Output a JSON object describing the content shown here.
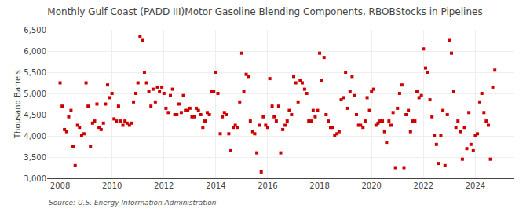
{
  "chart_data": {
    "type": "scatter",
    "title": "Monthly Gulf Coast (PADD III)Motor Gasoline Blending Components, RBOBStocks in Pipelines",
    "ylabel": "Thousand Barrels",
    "source": "Source: U.S. Energy Information Administration",
    "color": "#cc0000",
    "marker": "square",
    "grid": true,
    "xlim": [
      2007.5,
      2025.5
    ],
    "xticks": [
      2008,
      2010,
      2012,
      2014,
      2016,
      2018,
      2020,
      2022,
      2024
    ],
    "ylim": [
      3000,
      6500
    ],
    "yticks": [
      {
        "value": 3000,
        "label": "3,000"
      },
      {
        "value": 3500,
        "label": "3,500"
      },
      {
        "value": 4000,
        "label": "4,000"
      },
      {
        "value": 4500,
        "label": "4,500"
      },
      {
        "value": 5000,
        "label": "5,000"
      },
      {
        "value": 5500,
        "label": "5,500"
      },
      {
        "value": 6000,
        "label": "6,000"
      },
      {
        "value": 6500,
        "label": "6,500"
      }
    ],
    "x": [
      2008.0,
      2008.08,
      2008.17,
      2008.25,
      2008.33,
      2008.42,
      2008.5,
      2008.58,
      2008.67,
      2008.75,
      2008.83,
      2008.92,
      2009.0,
      2009.08,
      2009.17,
      2009.25,
      2009.33,
      2009.42,
      2009.5,
      2009.58,
      2009.67,
      2009.75,
      2009.83,
      2009.92,
      2010.0,
      2010.08,
      2010.17,
      2010.25,
      2010.33,
      2010.42,
      2010.5,
      2010.58,
      2010.67,
      2010.75,
      2010.83,
      2010.92,
      2011.0,
      2011.08,
      2011.17,
      2011.25,
      2011.33,
      2011.42,
      2011.5,
      2011.58,
      2011.67,
      2011.75,
      2011.83,
      2011.92,
      2012.0,
      2012.08,
      2012.17,
      2012.25,
      2012.33,
      2012.42,
      2012.5,
      2012.58,
      2012.67,
      2012.75,
      2012.83,
      2012.92,
      2013.0,
      2013.08,
      2013.17,
      2013.25,
      2013.33,
      2013.42,
      2013.5,
      2013.58,
      2013.67,
      2013.75,
      2013.83,
      2013.92,
      2014.0,
      2014.08,
      2014.17,
      2014.25,
      2014.33,
      2014.42,
      2014.5,
      2014.58,
      2014.67,
      2014.75,
      2014.83,
      2014.92,
      2015.0,
      2015.08,
      2015.17,
      2015.25,
      2015.33,
      2015.42,
      2015.5,
      2015.58,
      2015.67,
      2015.75,
      2015.83,
      2015.92,
      2016.0,
      2016.08,
      2016.17,
      2016.25,
      2016.33,
      2016.42,
      2016.5,
      2016.58,
      2016.67,
      2016.75,
      2016.83,
      2016.92,
      2017.0,
      2017.08,
      2017.17,
      2017.25,
      2017.33,
      2017.42,
      2017.5,
      2017.58,
      2017.67,
      2017.75,
      2017.83,
      2017.92,
      2018.0,
      2018.08,
      2018.17,
      2018.25,
      2018.33,
      2018.42,
      2018.5,
      2018.58,
      2018.67,
      2018.75,
      2018.83,
      2018.92,
      2019.0,
      2019.08,
      2019.17,
      2019.25,
      2019.33,
      2019.42,
      2019.5,
      2019.58,
      2019.67,
      2019.75,
      2019.83,
      2019.92,
      2020.0,
      2020.08,
      2020.17,
      2020.25,
      2020.33,
      2020.42,
      2020.5,
      2020.58,
      2020.67,
      2020.75,
      2020.83,
      2020.92,
      2021.0,
      2021.08,
      2021.17,
      2021.25,
      2021.33,
      2021.42,
      2021.5,
      2021.58,
      2021.67,
      2021.75,
      2021.83,
      2021.92,
      2022.0,
      2022.08,
      2022.17,
      2022.25,
      2022.33,
      2022.42,
      2022.5,
      2022.58,
      2022.67,
      2022.75,
      2022.83,
      2022.92,
      2023.0,
      2023.08,
      2023.17,
      2023.25,
      2023.33,
      2023.42,
      2023.5,
      2023.58,
      2023.67,
      2023.75,
      2023.83,
      2023.92,
      2024.0,
      2024.08,
      2024.17,
      2024.25,
      2024.33,
      2024.42,
      2024.5,
      2024.58,
      2024.67,
      2024.75
    ],
    "values": [
      5250,
      4700,
      4150,
      4100,
      4450,
      4600,
      3750,
      3300,
      4250,
      4200,
      4000,
      4050,
      5250,
      4700,
      3750,
      4300,
      4350,
      4750,
      4200,
      4150,
      4300,
      4750,
      5200,
      4900,
      5000,
      4400,
      4350,
      4700,
      4350,
      4250,
      4350,
      4300,
      4250,
      4300,
      4800,
      5000,
      5250,
      6350,
      6250,
      5500,
      5250,
      5050,
      4700,
      5100,
      4800,
      5150,
      5050,
      5150,
      5000,
      4650,
      4550,
      4950,
      5100,
      4500,
      4500,
      4750,
      4550,
      4950,
      4600,
      4600,
      4650,
      4450,
      4450,
      4650,
      4600,
      4500,
      4200,
      4350,
      4550,
      4500,
      5050,
      5050,
      5500,
      5000,
      4050,
      4450,
      4550,
      4500,
      4050,
      3650,
      4200,
      4250,
      4200,
      4800,
      5950,
      5050,
      5450,
      5400,
      4350,
      4100,
      4050,
      3600,
      4250,
      3150,
      4450,
      4250,
      4200,
      5350,
      4700,
      4450,
      4350,
      4700,
      3600,
      4150,
      4250,
      4350,
      4600,
      4500,
      5400,
      5250,
      4800,
      5300,
      5250,
      5100,
      5000,
      4350,
      4350,
      4600,
      4450,
      4600,
      5950,
      5300,
      5850,
      4500,
      4350,
      4200,
      4200,
      4000,
      4050,
      4100,
      4850,
      4900,
      5500,
      4650,
      5050,
      5400,
      4950,
      4500,
      4250,
      4250,
      4200,
      4350,
      4900,
      4600,
      5050,
      5100,
      4250,
      4300,
      4350,
      4350,
      4100,
      3850,
      4350,
      4250,
      4550,
      3250,
      4650,
      5000,
      5200,
      3250,
      4500,
      4600,
      4100,
      4350,
      4350,
      5050,
      4900,
      4950,
      6050,
      5600,
      5500,
      4850,
      4450,
      4000,
      3800,
      3350,
      4000,
      4600,
      3300,
      4500,
      6250,
      5950,
      5050,
      4200,
      4350,
      4100,
      3450,
      4200,
      3700,
      4550,
      3800,
      3650,
      4000,
      4050,
      4800,
      5000,
      4550,
      4350,
      4250,
      3450,
      5150,
      5550
    ]
  }
}
